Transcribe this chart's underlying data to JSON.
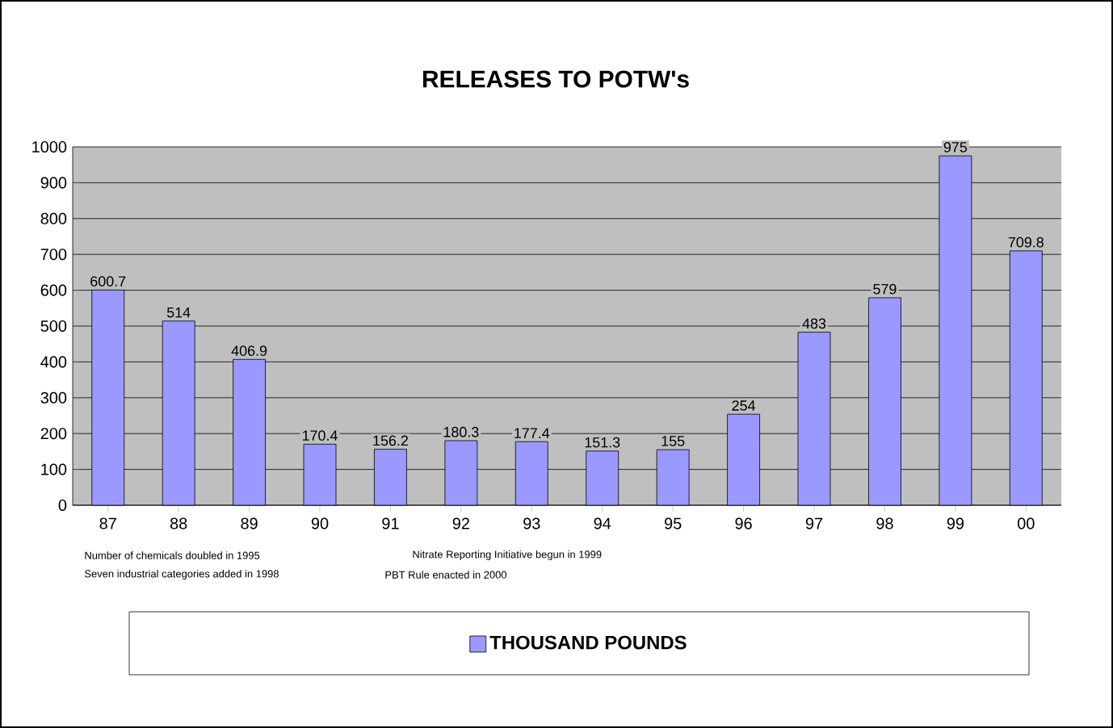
{
  "chart_data": {
    "type": "bar",
    "title": "RELEASES TO POTW's",
    "categories": [
      "87",
      "88",
      "89",
      "90",
      "91",
      "92",
      "93",
      "94",
      "95",
      "96",
      "97",
      "98",
      "99",
      "00"
    ],
    "series": [
      {
        "name": "THOUSAND POUNDS",
        "color": "#9999ff",
        "values": [
          600.7,
          514,
          406.9,
          170.4,
          156.2,
          180.3,
          177.4,
          151.3,
          155,
          254,
          483,
          579,
          975,
          709.8
        ]
      }
    ],
    "ylim": [
      0,
      1000
    ],
    "yticks": [
      0,
      100,
      200,
      300,
      400,
      500,
      600,
      700,
      800,
      900,
      1000
    ],
    "grid": "y",
    "legend": "bottom",
    "data_labels": true,
    "annotations": [
      "Number of chemicals doubled in 1995",
      "Nitrate Reporting Initiative begun in 1999",
      "Seven industrial categories added in 1998",
      "PBT Rule enacted in 2000"
    ]
  }
}
